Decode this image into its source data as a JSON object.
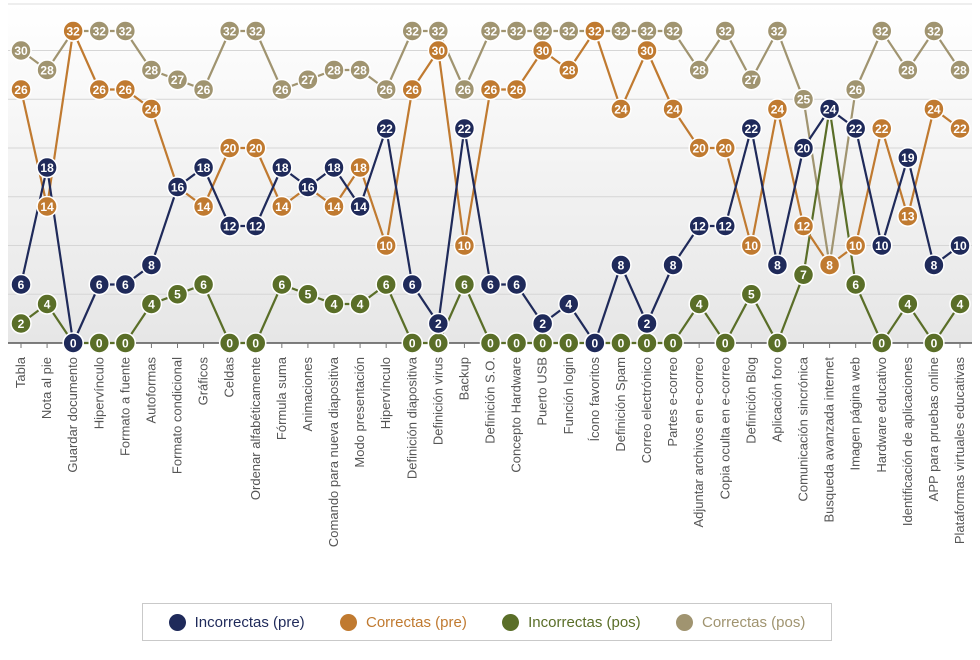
{
  "chart_data": {
    "type": "line",
    "title": "",
    "xlabel": "",
    "ylabel": "",
    "ylim": [
      0,
      34
    ],
    "grid": true,
    "legend_position": "bottom",
    "categories": [
      "Tabla",
      "Nota al pie",
      "Guardar documento",
      "Hipervínculo",
      "Formato a fuente",
      "Autoformas",
      "Formato condicional",
      "Gráficos",
      "Celdas",
      "Ordenar alfabéticamente",
      "Fórmula suma",
      "Animaciones",
      "Comando para nueva diapositiva",
      "Modo presentación",
      "Hipervínculo",
      "Definición diapositiva",
      "Definición virus",
      "Backup",
      "Definición S.O.",
      "Concepto Hardware",
      "Puerto USB",
      "Función login",
      "Ícono favoritos",
      "Definición Spam",
      "Correo electrónico",
      "Partes e-correo",
      "Adjuntar archivos en e-correo",
      "Copia oculta en e-correo",
      "Definición Blog",
      "Aplicación foro",
      "Comunicación sincrónica",
      "Busqueda avanzada internet",
      "Imagen página web",
      "Hardware educativo",
      "Identificación de aplicaciones",
      "APP para pruebas online",
      "Plataformas virtuales educativas"
    ],
    "series": [
      {
        "name": "Incorrectas (pre)",
        "color": "#1f2a5a",
        "values": [
          6,
          18,
          0,
          6,
          6,
          8,
          16,
          18,
          12,
          12,
          18,
          16,
          18,
          14,
          22,
          6,
          2,
          22,
          6,
          6,
          2,
          4,
          0,
          8,
          2,
          8,
          12,
          12,
          22,
          8,
          20,
          24,
          22,
          10,
          19,
          8,
          10
        ]
      },
      {
        "name": "Correctas (pre)",
        "color": "#c07a30",
        "values": [
          26,
          14,
          32,
          26,
          26,
          24,
          16,
          14,
          20,
          20,
          14,
          16,
          14,
          18,
          10,
          26,
          30,
          10,
          26,
          26,
          30,
          28,
          32,
          24,
          30,
          24,
          20,
          20,
          10,
          24,
          12,
          8,
          10,
          22,
          13,
          24,
          22
        ]
      },
      {
        "name": "Incorrectas (pos)",
        "color": "#5a6e28",
        "values": [
          2,
          4,
          0,
          0,
          0,
          4,
          5,
          6,
          0,
          0,
          6,
          5,
          4,
          4,
          6,
          0,
          0,
          6,
          0,
          0,
          0,
          0,
          0,
          0,
          0,
          0,
          4,
          0,
          5,
          0,
          7,
          24,
          6,
          0,
          4,
          0,
          4
        ]
      },
      {
        "name": "Correctas (pos)",
        "color": "#a09470",
        "values": [
          30,
          28,
          32,
          32,
          32,
          28,
          27,
          26,
          32,
          32,
          26,
          27,
          28,
          28,
          26,
          32,
          32,
          26,
          32,
          32,
          32,
          32,
          32,
          32,
          32,
          32,
          28,
          32,
          27,
          32,
          25,
          8,
          26,
          32,
          28,
          32,
          28
        ]
      }
    ]
  }
}
